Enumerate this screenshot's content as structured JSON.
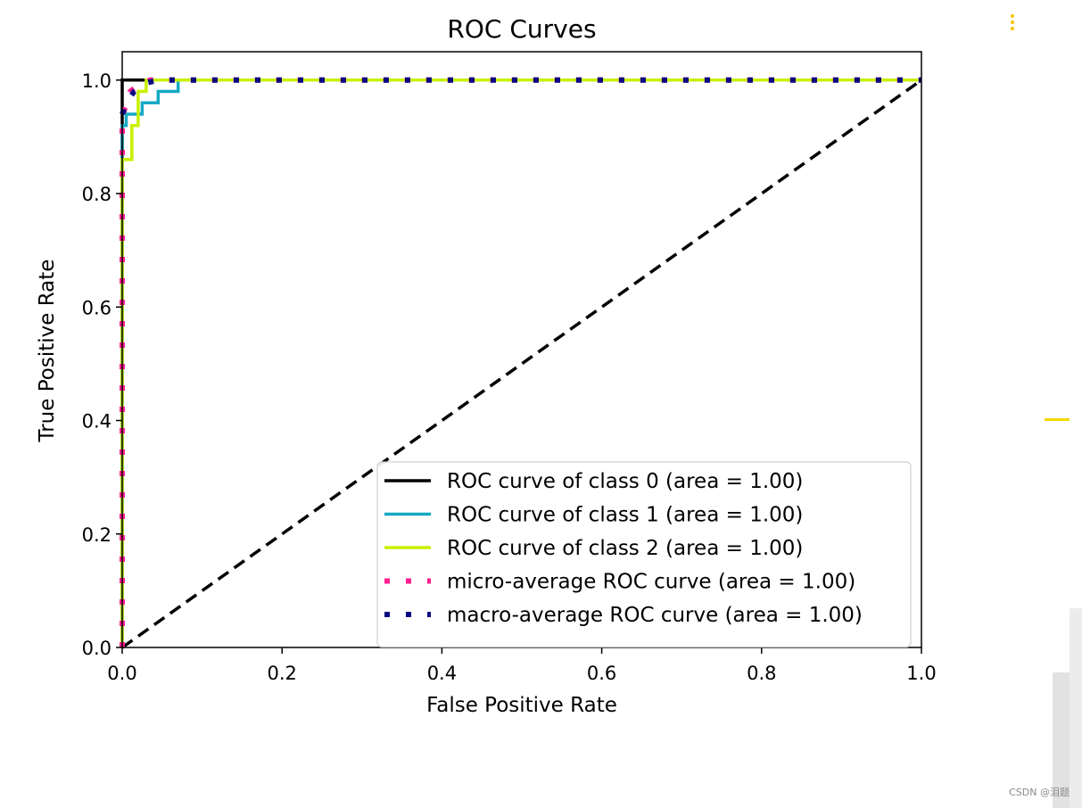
{
  "chart_data": {
    "type": "line",
    "title": "ROC Curves",
    "xlabel": "False Positive Rate",
    "ylabel": "True Positive Rate",
    "xlim": [
      0.0,
      1.0
    ],
    "ylim": [
      0.0,
      1.05
    ],
    "xticks": [
      0.0,
      0.2,
      0.4,
      0.6,
      0.8,
      1.0
    ],
    "yticks": [
      0.0,
      0.2,
      0.4,
      0.6,
      0.8,
      1.0
    ],
    "tick_labels": [
      "0.0",
      "0.2",
      "0.4",
      "0.6",
      "0.8",
      "1.0"
    ],
    "grid": false,
    "legend_position": "lower-right",
    "series": [
      {
        "name": "ROC curve of class 0 (area = 1.00)",
        "color": "#000000",
        "style": "solid",
        "x": [
          0.0,
          0.0,
          1.0
        ],
        "y": [
          0.0,
          1.0,
          1.0
        ]
      },
      {
        "name": "ROC curve of class 1 (area = 1.00)",
        "color": "#17a9c4",
        "style": "solid",
        "x": [
          0.0,
          0.0,
          0.005,
          0.005,
          0.025,
          0.025,
          0.045,
          0.045,
          0.07,
          0.07,
          1.0
        ],
        "y": [
          0.0,
          0.92,
          0.92,
          0.94,
          0.94,
          0.96,
          0.96,
          0.98,
          0.98,
          1.0,
          1.0
        ]
      },
      {
        "name": "ROC curve of class 2 (area = 1.00)",
        "color": "#c8f000",
        "style": "solid",
        "x": [
          0.0,
          0.0,
          0.005,
          0.005,
          0.012,
          0.012,
          0.02,
          0.02,
          0.03,
          0.03,
          1.0
        ],
        "y": [
          0.0,
          0.86,
          0.86,
          0.86,
          0.86,
          0.92,
          0.92,
          0.98,
          0.98,
          1.0,
          1.0
        ]
      },
      {
        "name": "micro-average ROC curve (area = 1.00)",
        "color": "#ff1e8e",
        "style": "dotted",
        "x": [
          0.0,
          0.0,
          0.003,
          0.01,
          0.02,
          0.035,
          1.0
        ],
        "y": [
          0.0,
          0.93,
          0.95,
          0.98,
          0.99,
          1.0,
          1.0
        ]
      },
      {
        "name": "macro-average ROC curve (area = 1.00)",
        "color": "#0a0a80",
        "style": "dotted",
        "x": [
          0.0,
          0.005,
          0.015,
          0.03,
          0.045,
          1.0
        ],
        "y": [
          0.94,
          0.96,
          0.98,
          0.995,
          1.0,
          1.0
        ]
      },
      {
        "name": "",
        "color": "#000000",
        "style": "dashed",
        "x": [
          0.0,
          1.0
        ],
        "y": [
          0.0,
          1.0
        ]
      }
    ]
  },
  "page": {
    "watermark": "CSDN @泪题",
    "accent_color": "#f5c400"
  }
}
